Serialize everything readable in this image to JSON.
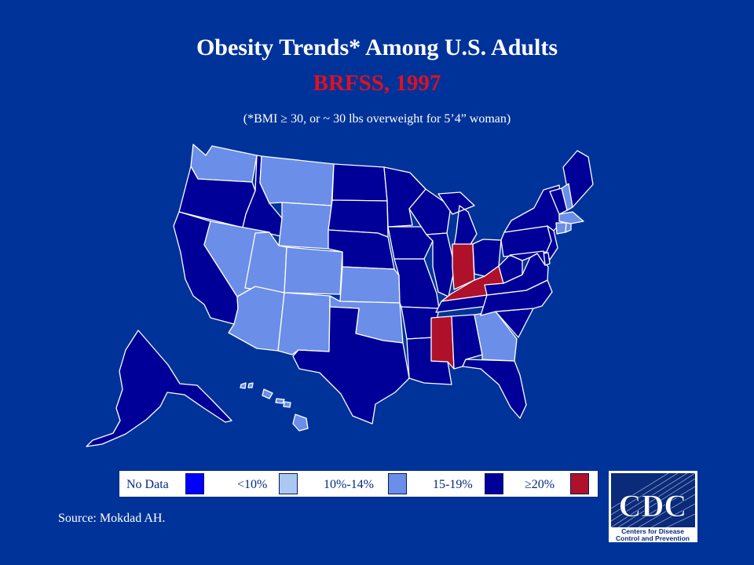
{
  "title": "Obesity Trends* Among U.S. Adults",
  "subtitle": "BRFSS, 1997",
  "footnote": "(*BMI ≥ 30, or ~ 30 lbs overweight for 5’4” woman)",
  "colors": {
    "background": "#003399",
    "no_data": "#0000ff",
    "lt10": "#adc8f0",
    "p10_14": "#6b8ee8",
    "p15_19": "#000099",
    "ge20": "#b0112a",
    "subtitle": "#e0101e"
  },
  "legend": [
    {
      "label": "No Data",
      "category": "no_data"
    },
    {
      "label": "<10%",
      "category": "lt10"
    },
    {
      "label": "10%-14%",
      "category": "p10_14"
    },
    {
      "label": "15-19%",
      "category": "p15_19"
    },
    {
      "label": "≥20%",
      "category": "ge20"
    }
  ],
  "states": {
    "WA": "p10_14",
    "OR": "p15_19",
    "CA": "p15_19",
    "ID": "p15_19",
    "NV": "p10_14",
    "MT": "p10_14",
    "WY": "p10_14",
    "UT": "p10_14",
    "AZ": "p10_14",
    "CO": "p10_14",
    "NM": "p10_14",
    "ND": "p15_19",
    "SD": "p15_19",
    "NE": "p15_19",
    "KS": "p10_14",
    "OK": "p10_14",
    "TX": "p15_19",
    "MN": "p15_19",
    "IA": "p15_19",
    "MO": "p15_19",
    "AR": "p15_19",
    "LA": "p15_19",
    "WI": "p15_19",
    "IL": "p15_19",
    "MI": "p15_19",
    "IN": "ge20",
    "OH": "p15_19",
    "KY": "ge20",
    "TN": "p15_19",
    "MS": "ge20",
    "AL": "p15_19",
    "GA": "p10_14",
    "FL": "p15_19",
    "SC": "p15_19",
    "NC": "p15_19",
    "VA": "p15_19",
    "WV": "p15_19",
    "PA": "p15_19",
    "NY": "p15_19",
    "ME": "p15_19",
    "NH": "p10_14",
    "VT": "p15_19",
    "MA": "p10_14",
    "CT": "p10_14",
    "RI": "p10_14",
    "NJ": "p15_19",
    "DE": "p15_19",
    "MD": "p15_19",
    "AK": "p15_19",
    "HI": "p10_14"
  },
  "source": "Source: Mokdad AH.",
  "logo": {
    "name": "CDC",
    "line1": "Centers for Disease",
    "line2": "Control and Prevention"
  }
}
